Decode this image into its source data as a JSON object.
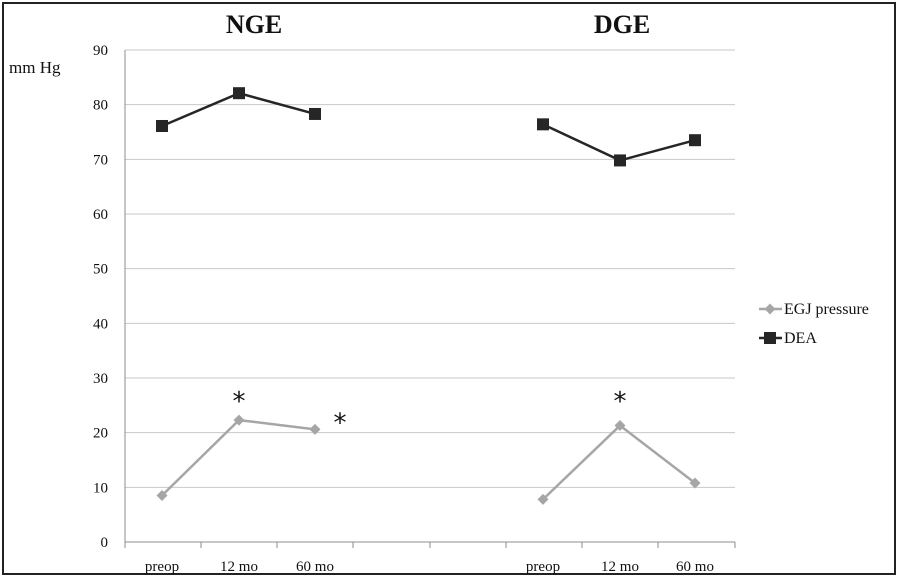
{
  "chart_data": {
    "type": "line",
    "ylabel": "mm Hg",
    "ylim": [
      0,
      90
    ],
    "yticks": [
      "0",
      "10",
      "20",
      "30",
      "40",
      "50",
      "60",
      "70",
      "80",
      "90"
    ],
    "grid": true,
    "legend_position": "right",
    "groups": [
      {
        "title": "NGE",
        "categories": [
          "preop",
          "12 mo",
          "60 mo"
        ],
        "series": [
          {
            "name": "EGJ pressure",
            "values": [
              8.5,
              22.3,
              20.6
            ]
          },
          {
            "name": "DEA",
            "values": [
              76.1,
              82.1,
              78.3
            ]
          }
        ],
        "annotations": [
          {
            "text": "*",
            "category": "12 mo",
            "value": 26
          },
          {
            "text": "*",
            "category": "60 mo",
            "value": 22,
            "offset": "right"
          }
        ]
      },
      {
        "title": "DGE",
        "categories": [
          "preop",
          "12 mo",
          "60 mo"
        ],
        "series": [
          {
            "name": "EGJ pressure",
            "values": [
              7.8,
              21.3,
              10.8
            ]
          },
          {
            "name": "DEA",
            "values": [
              76.4,
              69.8,
              73.5
            ]
          }
        ],
        "annotations": [
          {
            "text": "*",
            "category": "12 mo",
            "value": 26
          }
        ]
      }
    ],
    "legend": [
      {
        "name": "EGJ pressure",
        "marker": "diamond",
        "color": "#a6a6a6"
      },
      {
        "name": "DEA",
        "marker": "square",
        "color": "#262626"
      }
    ]
  }
}
